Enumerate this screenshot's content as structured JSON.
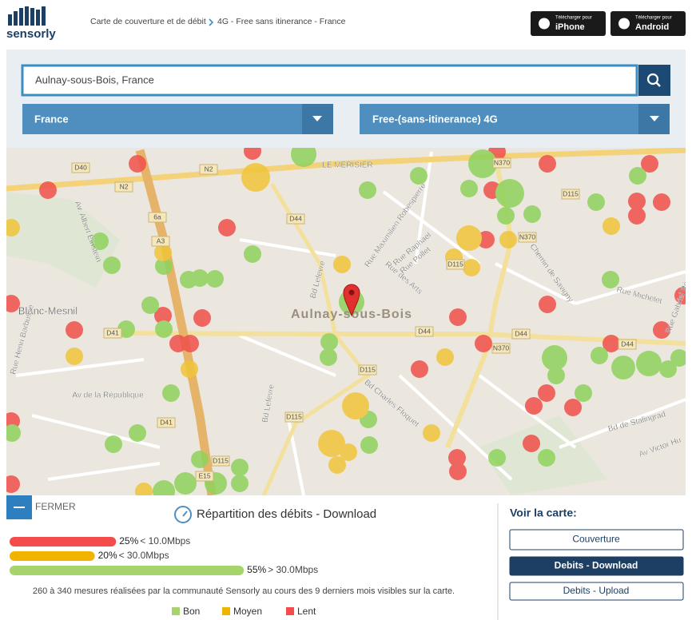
{
  "header": {
    "logo": "sensorly",
    "breadcrumb": [
      "Carte de couverture et de débit",
      "4G - Free sans itinerance - France"
    ],
    "app_buttons": [
      {
        "caption": "Télécharger pour",
        "label": "iPhone"
      },
      {
        "caption": "Télécharger pour",
        "label": "Android"
      }
    ]
  },
  "search": {
    "query": "Aulnay-sous-Bois, France",
    "country": "France",
    "network": "Free-(sans-itinerance) 4G"
  },
  "map": {
    "labels": [
      "D40",
      "N2",
      "LE MERISIER",
      "N370",
      "D115",
      "N2",
      "6a",
      "D44",
      "A3",
      "Rue Maximilien Robespierre",
      "Rue Raphaël",
      "Rue Pollet",
      "N370",
      "D115",
      "Rue des Arts",
      "Chemin de Savigny",
      "Bd Lefevre",
      "Av. Albert Einstein",
      "Blanc-Mesnil",
      "Aulnay-sous-Bois",
      "D41",
      "D44",
      "D44",
      "N370",
      "D44",
      "Rue Michelet",
      "Rue Gabriel Pé",
      "Rue Henri Barbusse",
      "D115",
      "Av de la République",
      "Bd Lefevre",
      "Bd Charles Floquet",
      "D115",
      "D41",
      "Bd de Stalingrad",
      "Av Victor Hu",
      "D115",
      "E15"
    ]
  },
  "panel": {
    "close": "FERMER",
    "distribution": {
      "title": "Répartition des débits - Download",
      "values": [
        25,
        20,
        55
      ],
      "value_labels": [
        "25%",
        "20%",
        "55%"
      ],
      "conditions": [
        "< 10.0Mbps",
        "< 30.0Mbps",
        "> 30.0Mbps"
      ],
      "colors": [
        "#f44b4b",
        "#f0b400",
        "#a6d46c"
      ]
    },
    "note": "260 à 340 mesures réalisées par la communauté Sensorly au cours des 9 derniers mois visibles sur la carte.",
    "legend": [
      {
        "label": "Bon",
        "color": "#a6d46c"
      },
      {
        "label": "Moyen",
        "color": "#f0b400"
      },
      {
        "label": "Lent",
        "color": "#f44b4b"
      }
    ],
    "view_title": "Voir la carte:",
    "view_buttons": [
      "Couverture",
      "Debits - Download",
      "Debits - Upload"
    ]
  }
}
